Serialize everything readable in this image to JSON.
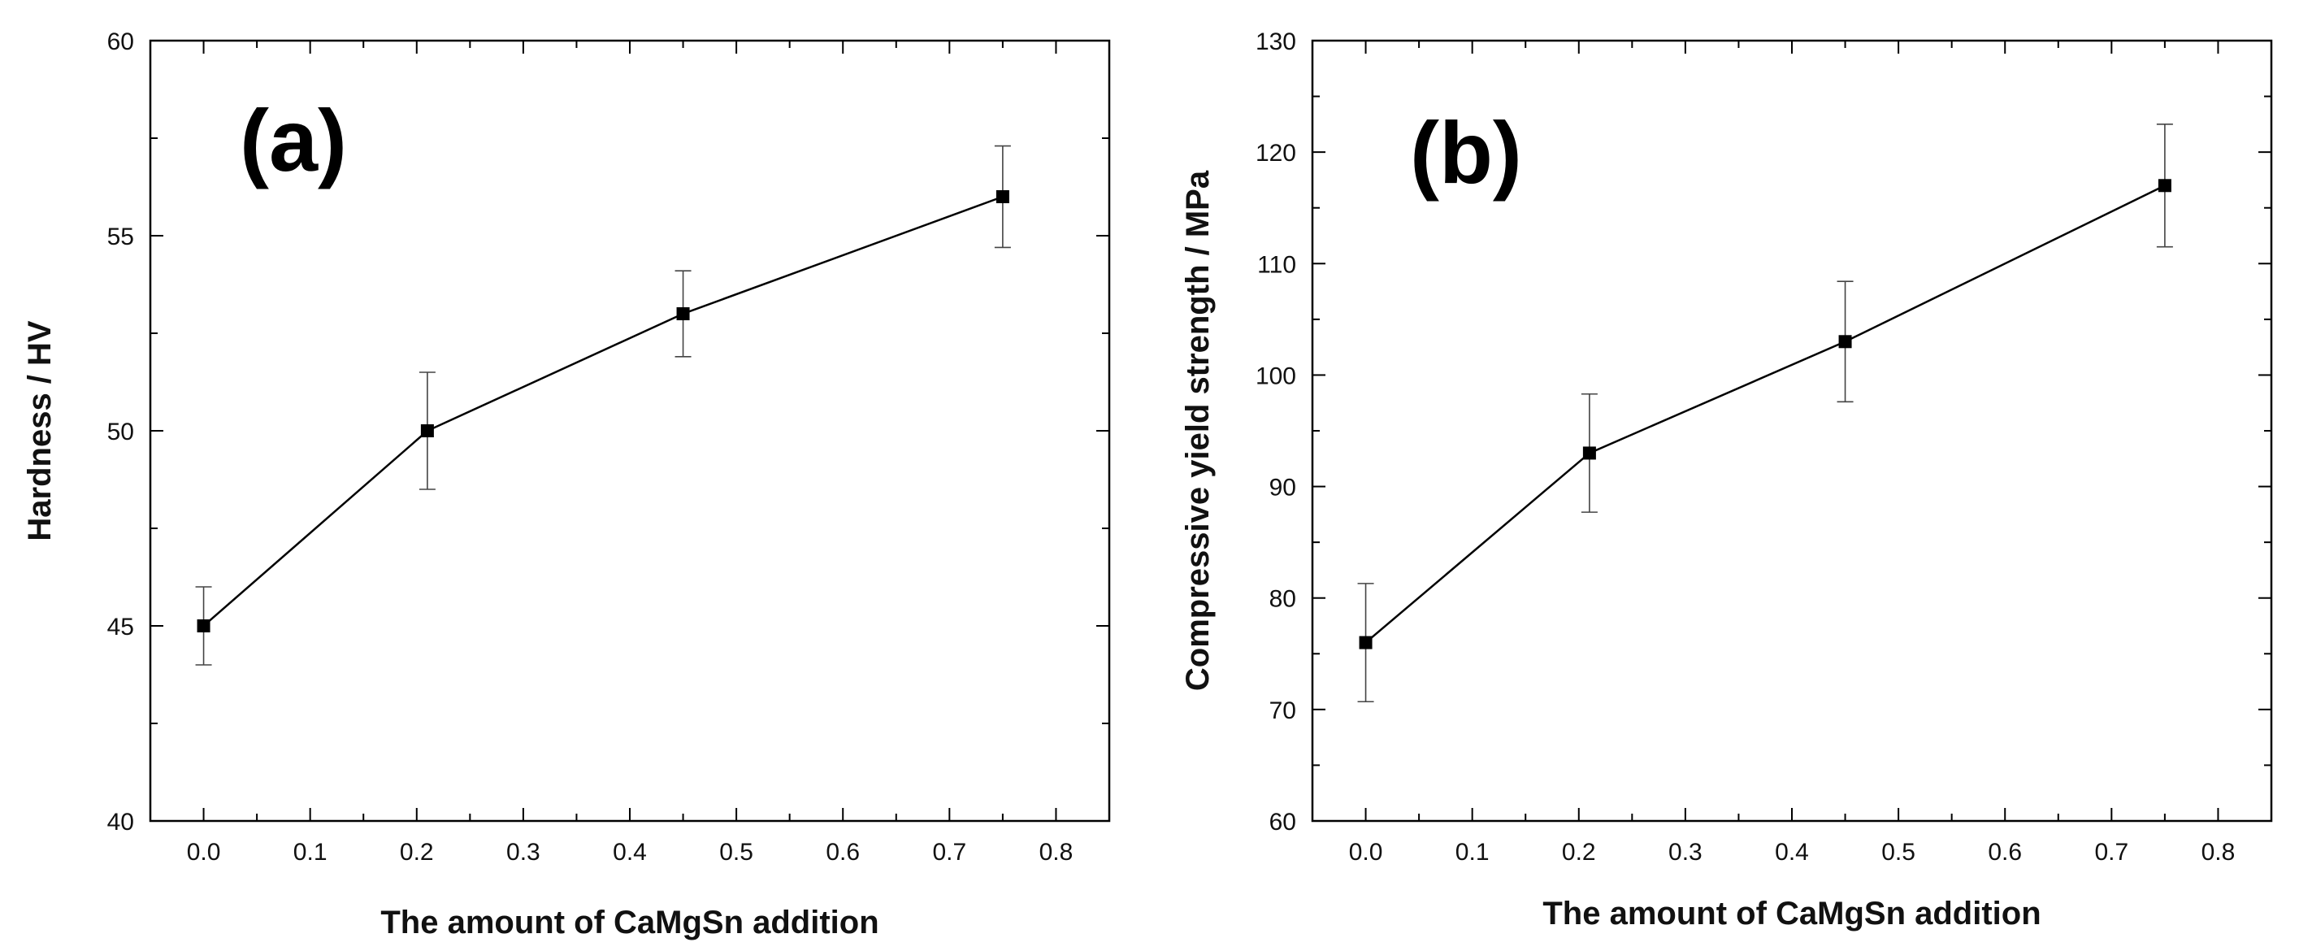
{
  "chart_data": [
    {
      "type": "line",
      "panel_label": "(a)",
      "xlabel": "The amount of CaMgSn addition",
      "ylabel": "Hardness / HV",
      "xlim": [
        -0.05,
        0.85
      ],
      "ylim": [
        40,
        60
      ],
      "x_ticks": [
        "0.0",
        "0.1",
        "0.2",
        "0.3",
        "0.4",
        "0.5",
        "0.6",
        "0.7",
        "0.8"
      ],
      "y_ticks": [
        "40",
        "45",
        "50",
        "55",
        "60"
      ],
      "grid": false,
      "series": [
        {
          "name": "Hardness",
          "x": [
            0.0,
            0.21,
            0.45,
            0.75
          ],
          "y": [
            45,
            50,
            53,
            56
          ],
          "err_low": [
            1.0,
            1.5,
            1.1,
            1.3
          ],
          "err_high": [
            1.0,
            1.5,
            1.1,
            1.3
          ]
        }
      ]
    },
    {
      "type": "line",
      "panel_label": "(b)",
      "xlabel": "The amount of CaMgSn addition",
      "ylabel": "Compressive yield strength / MPa",
      "xlim": [
        -0.05,
        0.85
      ],
      "ylim": [
        60,
        130
      ],
      "x_ticks": [
        "0.0",
        "0.1",
        "0.2",
        "0.3",
        "0.4",
        "0.5",
        "0.6",
        "0.7",
        "0.8"
      ],
      "y_ticks": [
        "60",
        "70",
        "80",
        "90",
        "100",
        "110",
        "120",
        "130"
      ],
      "grid": false,
      "series": [
        {
          "name": "Compressive yield strength",
          "x": [
            0.0,
            0.21,
            0.45,
            0.75
          ],
          "y": [
            76,
            93,
            103,
            117
          ],
          "err_low": [
            5.3,
            5.3,
            5.4,
            5.5
          ],
          "err_high": [
            5.3,
            5.3,
            5.4,
            5.5
          ]
        }
      ]
    }
  ]
}
